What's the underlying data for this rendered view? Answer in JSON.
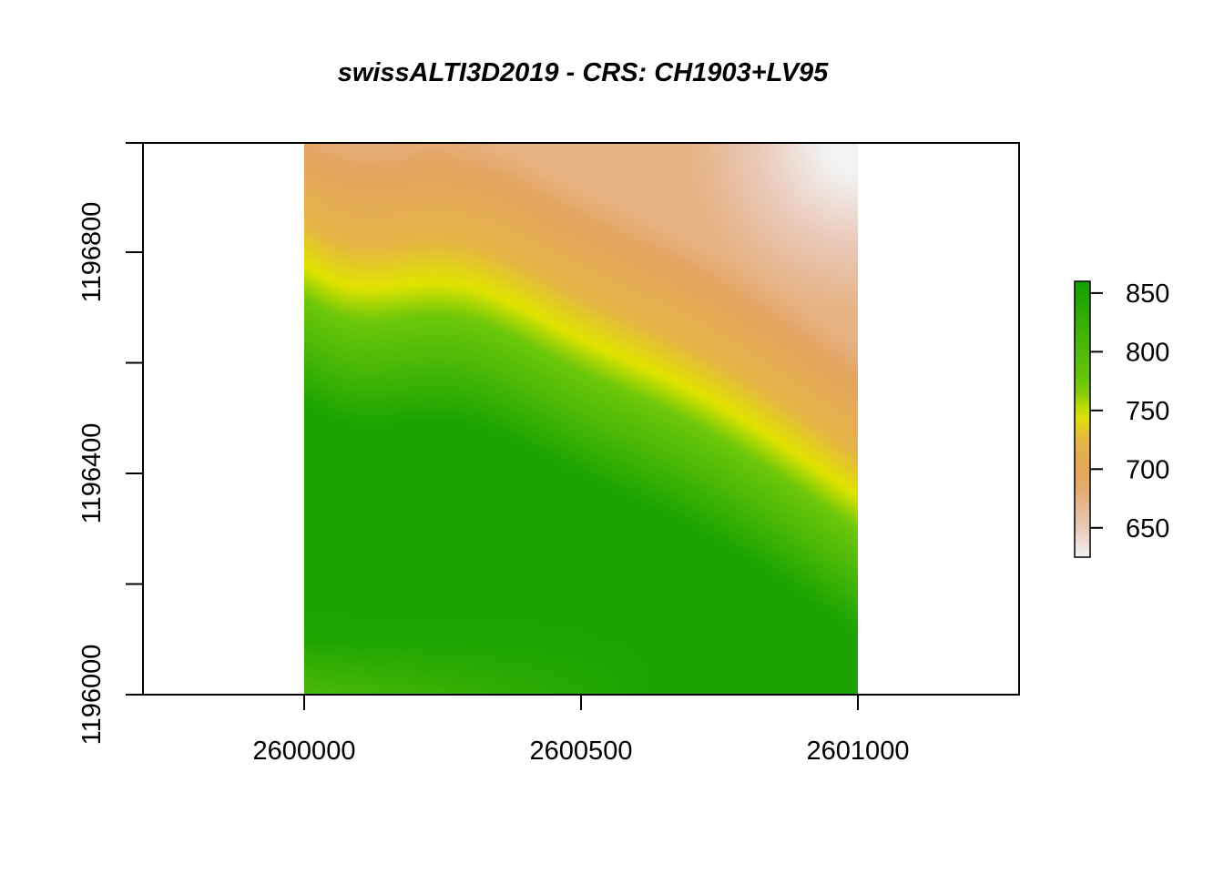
{
  "chart_data": {
    "type": "heatmap",
    "title": "swissALTI3D2019 - CRS: CH1903+LV95",
    "xlabel": "",
    "ylabel": "",
    "xlim": [
      2599710,
      2601290
    ],
    "ylim": [
      1196000,
      1197000
    ],
    "raster_extent": {
      "x": [
        2600000,
        2601000
      ],
      "y": [
        1196000,
        1197000
      ]
    },
    "x_ticks": [
      2600000,
      2600500,
      2601000
    ],
    "x_tick_labels": [
      "2600000",
      "2600500",
      "2601000"
    ],
    "y_ticks": [
      1196000,
      1196200,
      1196400,
      1196600,
      1196800
    ],
    "y_tick_labels": [
      "1196000",
      "",
      "1196400",
      "",
      "1196800"
    ],
    "legend": {
      "placement": "right",
      "range": [
        625,
        860
      ],
      "ticks": [
        650,
        700,
        750,
        800,
        850
      ],
      "tick_labels": [
        "650",
        "700",
        "750",
        "800",
        "850"
      ],
      "colors": [
        "#f2f2f2",
        "#e8c0b0",
        "#e3a05d",
        "#e6c02a",
        "#e2e600",
        "#63c80a",
        "#10a000"
      ]
    },
    "grid": false
  }
}
